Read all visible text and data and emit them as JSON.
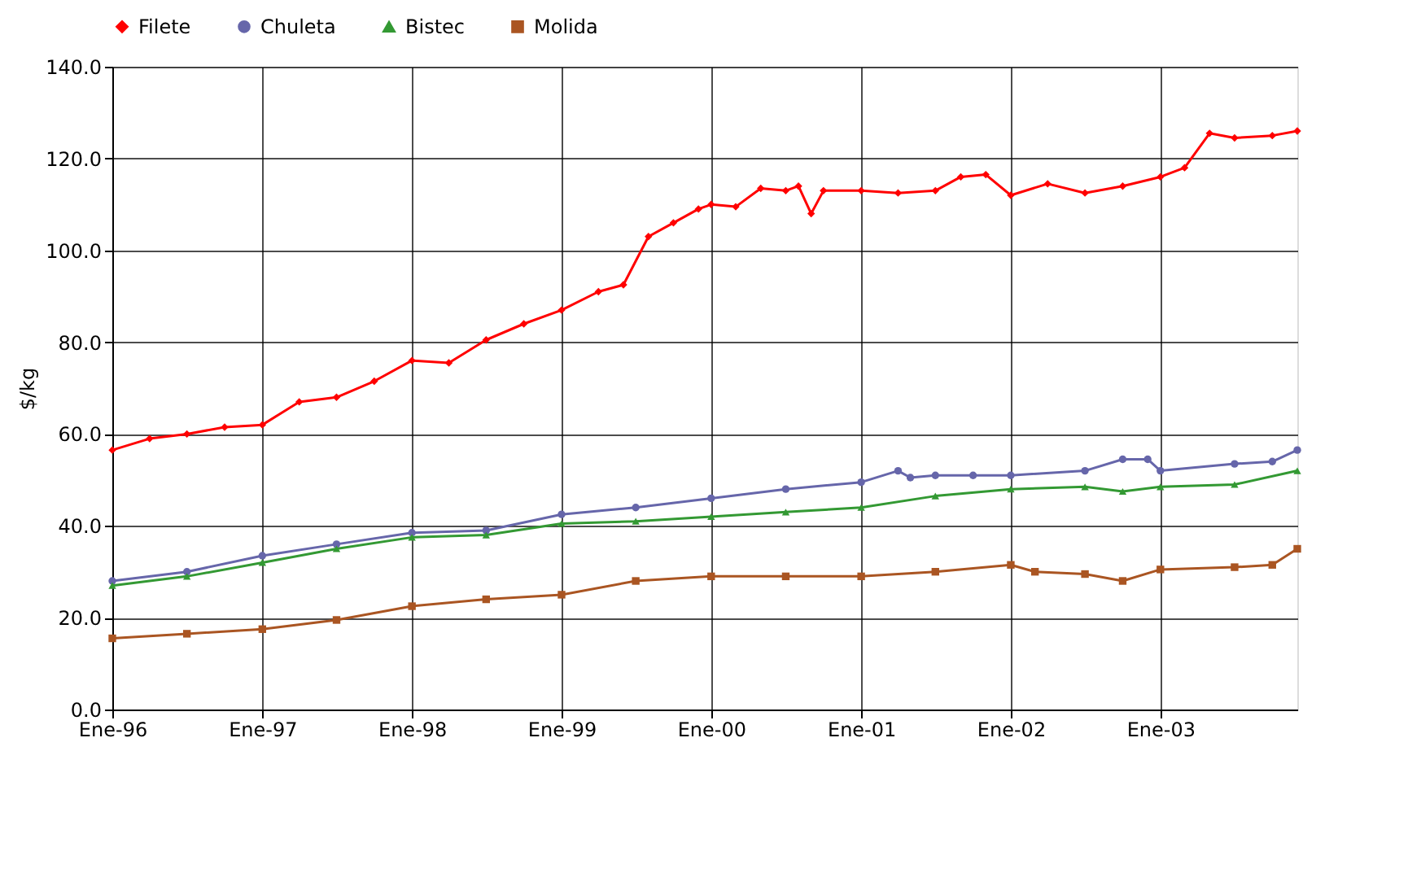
{
  "chart_data": {
    "type": "line",
    "ylabel": "$/kg",
    "legend": "top",
    "grid": true,
    "line_style": "solid",
    "xlim": [
      "1996-01",
      "2003-12"
    ],
    "xticks": [
      {
        "value": "1996-01",
        "label": "Ene-96"
      },
      {
        "value": "1997-01",
        "label": "Ene-97"
      },
      {
        "value": "1998-01",
        "label": "Ene-98"
      },
      {
        "value": "1999-01",
        "label": "Ene-99"
      },
      {
        "value": "2000-01",
        "label": "Ene-00"
      },
      {
        "value": "2001-01",
        "label": "Ene-01"
      },
      {
        "value": "2002-01",
        "label": "Ene-02"
      },
      {
        "value": "2003-01",
        "label": "Ene-03"
      }
    ],
    "ylim": [
      0,
      140
    ],
    "yticks": [
      {
        "value": 0,
        "label": "0.0"
      },
      {
        "value": 20,
        "label": "20.0"
      },
      {
        "value": 40,
        "label": "40.0"
      },
      {
        "value": 60,
        "label": "60.0"
      },
      {
        "value": 80,
        "label": "80.0"
      },
      {
        "value": 100,
        "label": "100.0"
      },
      {
        "value": 120,
        "label": "120.0"
      },
      {
        "value": 140,
        "label": "140.0"
      }
    ],
    "series": [
      {
        "name": "Filete",
        "color": "#ff0000",
        "marker": "diamond",
        "x": [
          "1996-01",
          "1996-04",
          "1996-07",
          "1996-10",
          "1997-01",
          "1997-04",
          "1997-07",
          "1997-10",
          "1998-01",
          "1998-04",
          "1998-07",
          "1998-10",
          "1999-01",
          "1999-04",
          "1999-06",
          "1999-08",
          "1999-10",
          "1999-12",
          "2000-01",
          "2000-03",
          "2000-05",
          "2000-07",
          "2000-08",
          "2000-09",
          "2000-10",
          "2001-01",
          "2001-04",
          "2001-07",
          "2001-09",
          "2001-11",
          "2002-01",
          "2002-04",
          "2002-07",
          "2002-10",
          "2003-01",
          "2003-03",
          "2003-05",
          "2003-07",
          "2003-10",
          "2003-12"
        ],
        "values": [
          56.5,
          59,
          60,
          61.5,
          62,
          67,
          68,
          71.5,
          76,
          75.5,
          80.5,
          84,
          87,
          91,
          92.5,
          103,
          106,
          109,
          110,
          109.5,
          113.5,
          113,
          114,
          108,
          113,
          113,
          112.5,
          113,
          116,
          116.5,
          112,
          114.5,
          112.5,
          114,
          116,
          118,
          125.5,
          124.5,
          125,
          126
        ]
      },
      {
        "name": "Chuleta",
        "color": "#6666aa",
        "marker": "circle",
        "x": [
          "1996-01",
          "1996-07",
          "1997-01",
          "1997-07",
          "1998-01",
          "1998-07",
          "1999-01",
          "1999-07",
          "2000-01",
          "2000-07",
          "2001-01",
          "2001-04",
          "2001-05",
          "2001-07",
          "2001-10",
          "2002-01",
          "2002-07",
          "2002-10",
          "2002-12",
          "2003-01",
          "2003-07",
          "2003-10",
          "2003-12"
        ],
        "values": [
          28,
          30,
          33.5,
          36,
          38.5,
          39,
          42.5,
          44,
          46,
          48,
          49.5,
          52,
          50.5,
          51,
          51,
          51,
          52,
          54.5,
          54.5,
          52,
          53.5,
          54,
          56.5
        ]
      },
      {
        "name": "Bistec",
        "color": "#339933",
        "marker": "triangle",
        "x": [
          "1996-01",
          "1996-07",
          "1997-01",
          "1997-07",
          "1998-01",
          "1998-07",
          "1999-01",
          "1999-07",
          "2000-01",
          "2000-07",
          "2001-01",
          "2001-07",
          "2002-01",
          "2002-07",
          "2002-10",
          "2003-01",
          "2003-07",
          "2003-12"
        ],
        "values": [
          27,
          29,
          32,
          35,
          37.5,
          38,
          40.5,
          41,
          42,
          43,
          44,
          46.5,
          48,
          48.5,
          47.5,
          48.5,
          49,
          52
        ]
      },
      {
        "name": "Molida",
        "color": "#aa5522",
        "marker": "square",
        "x": [
          "1996-01",
          "1996-07",
          "1997-01",
          "1997-07",
          "1998-01",
          "1998-07",
          "1999-01",
          "1999-07",
          "2000-01",
          "2000-07",
          "2001-01",
          "2001-07",
          "2002-01",
          "2002-03",
          "2002-07",
          "2002-10",
          "2003-01",
          "2003-07",
          "2003-10",
          "2003-12"
        ],
        "values": [
          15.5,
          16.5,
          17.5,
          19.5,
          22.5,
          24,
          25,
          28,
          29,
          29,
          29,
          30,
          31.5,
          30,
          29.5,
          28,
          30.5,
          31,
          31.5,
          35
        ]
      }
    ]
  }
}
